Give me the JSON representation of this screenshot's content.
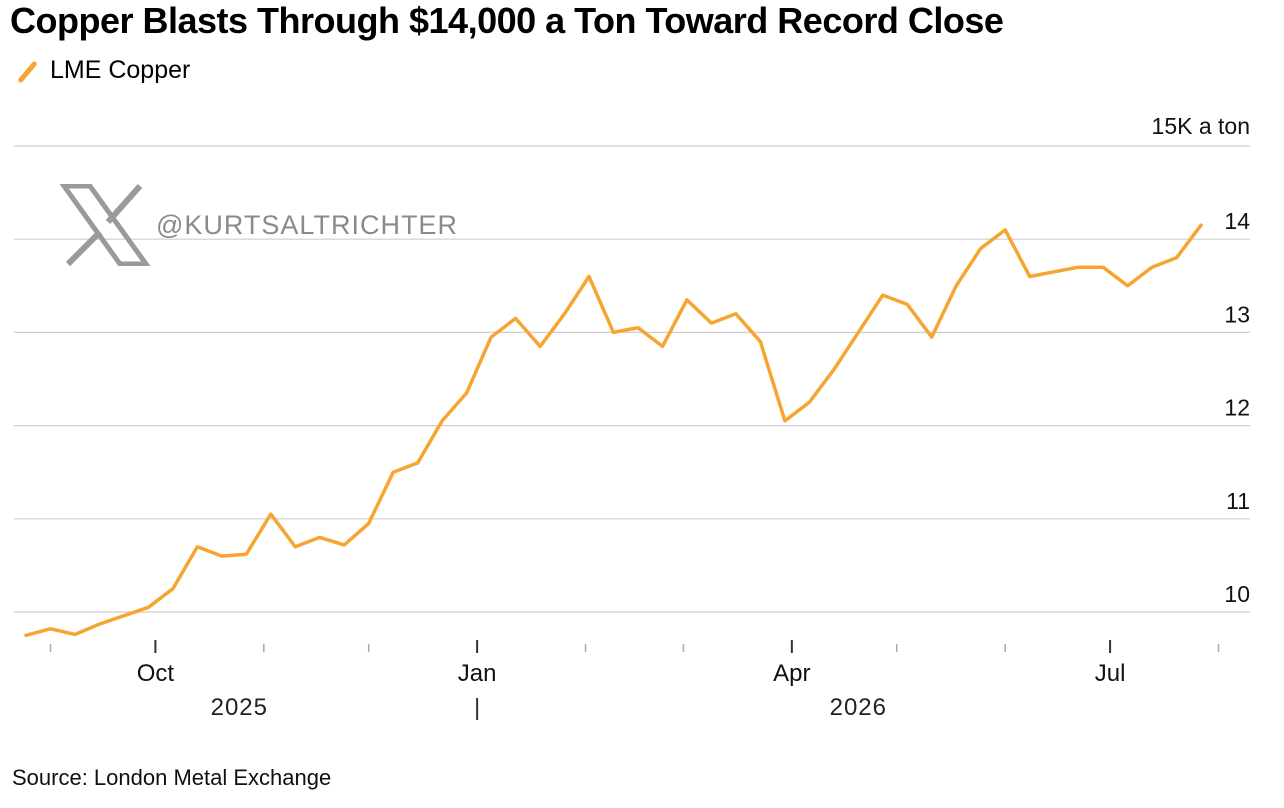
{
  "title": "Copper Blasts Through $14,000 a Ton Toward Record Close",
  "legend": {
    "label": "LME Copper",
    "color": "#f7a531"
  },
  "source": "Source: London Metal Exchange",
  "watermark": {
    "icon": "x-logo-icon",
    "handle": "@KURTSALTRICHTER"
  },
  "colors": {
    "line": "#f7a531",
    "grid": "#cfcfcf",
    "axis": "#333333",
    "text": "#111111"
  },
  "chart_data": {
    "type": "line",
    "title": "Copper Blasts Through $14,000 a Ton Toward Record Close",
    "unit_label": "15K a ton",
    "series": [
      {
        "name": "LME Copper",
        "x": [
          "2025-08-25",
          "2025-09-01",
          "2025-09-08",
          "2025-09-15",
          "2025-09-22",
          "2025-09-29",
          "2025-10-06",
          "2025-10-13",
          "2025-10-20",
          "2025-10-27",
          "2025-11-03",
          "2025-11-10",
          "2025-11-17",
          "2025-11-24",
          "2025-12-01",
          "2025-12-08",
          "2025-12-15",
          "2025-12-22",
          "2025-12-29",
          "2026-01-05",
          "2026-01-12",
          "2026-01-19",
          "2026-01-26",
          "2026-02-02",
          "2026-02-09",
          "2026-02-16",
          "2026-02-23",
          "2026-03-02",
          "2026-03-09",
          "2026-03-16",
          "2026-03-23",
          "2026-03-30",
          "2026-04-06",
          "2026-04-13",
          "2026-04-20",
          "2026-04-27",
          "2026-05-04",
          "2026-05-11",
          "2026-05-18",
          "2026-05-25",
          "2026-06-01",
          "2026-06-08",
          "2026-06-15",
          "2026-06-22",
          "2026-06-29",
          "2026-07-06",
          "2026-07-13",
          "2026-07-20",
          "2026-07-27"
        ],
        "y": [
          9750,
          9820,
          9760,
          9870,
          9960,
          10050,
          10250,
          10700,
          10600,
          10620,
          11050,
          10700,
          10800,
          10720,
          10950,
          11500,
          11600,
          12050,
          12350,
          12950,
          13150,
          12850,
          13200,
          13600,
          13000,
          13050,
          12850,
          13350,
          13100,
          13200,
          12900,
          12050,
          12250,
          12600,
          13000,
          13400,
          13300,
          12950,
          13500,
          13900,
          14100,
          13600,
          13650,
          13700,
          13700,
          13500,
          13700,
          13800,
          14150
        ]
      }
    ],
    "y_ticks": [
      10,
      11,
      12,
      13,
      14
    ],
    "ylim": [
      9600,
      15000
    ],
    "x_tick_labels": [
      "Oct",
      "Jan",
      "Apr",
      "Jul"
    ],
    "x_ticks": [
      "2025-10-01",
      "2026-01-01",
      "2026-04-01",
      "2026-07-01"
    ],
    "x_minor_ticks": [
      "2025-09-01",
      "2025-11-01",
      "2025-12-01",
      "2026-02-01",
      "2026-03-01",
      "2026-05-01",
      "2026-06-01",
      "2026-08-01"
    ],
    "year_labels": [
      {
        "label": "2025",
        "at": "2025-10-25"
      },
      {
        "label": "2026",
        "at": "2026-04-20"
      }
    ],
    "year_divider": "2026-01-01",
    "grid": true,
    "legend_position": "top-left"
  }
}
